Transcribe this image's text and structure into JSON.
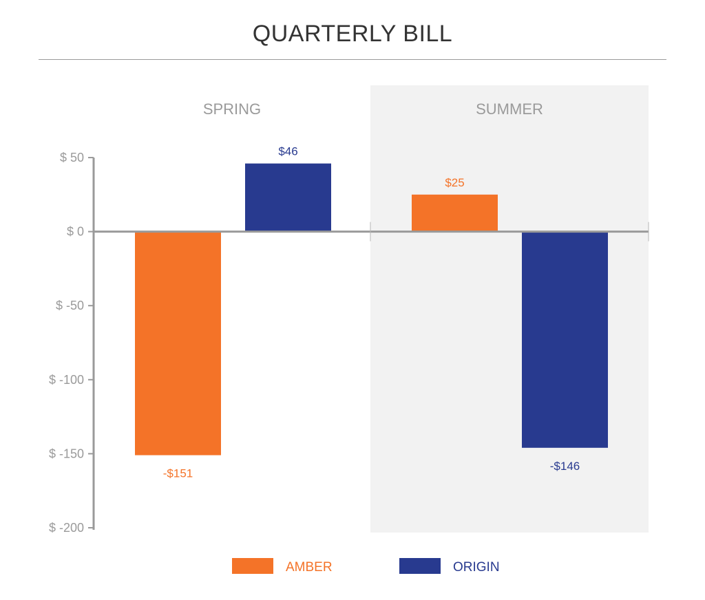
{
  "chart_data": {
    "type": "bar",
    "title": "QUARTERLY BILL",
    "categories": [
      "SPRING",
      "SUMMER"
    ],
    "series": [
      {
        "name": "AMBER",
        "color": "#f47328",
        "values": [
          -151,
          25
        ],
        "labels": [
          "-$151",
          "$25"
        ]
      },
      {
        "name": "ORIGIN",
        "color": "#283a8f",
        "values": [
          46,
          -146
        ],
        "labels": [
          "$46",
          "-$146"
        ]
      }
    ],
    "ylim": [
      -200,
      50
    ],
    "yticks": [
      50,
      0,
      -50,
      -100,
      -150,
      -200
    ],
    "ytick_labels": [
      "$ 50",
      "$ 0",
      "$ -50",
      "$ -100",
      "$ -150",
      "$ -200"
    ],
    "xlabel": "",
    "ylabel": "",
    "highlight_category": "SUMMER",
    "highlight_color": "#f2f2f2",
    "legend_position": "bottom"
  }
}
